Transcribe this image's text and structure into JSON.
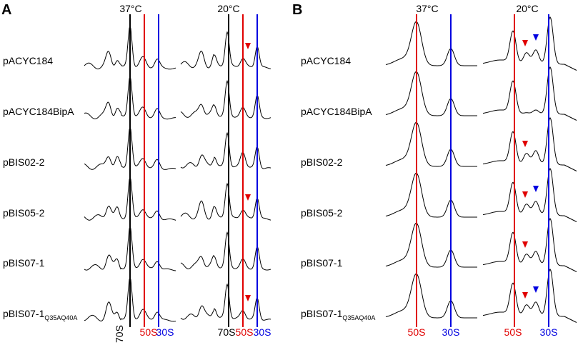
{
  "panels": [
    {
      "letter": "A",
      "temperatures": [
        "37°C",
        "20°C"
      ],
      "lanes": [
        {
          "label": "70S",
          "color": "#000000"
        },
        {
          "label": "50S",
          "color": "#e00000"
        },
        {
          "label": "30S",
          "color": "#0000e0"
        },
        {
          "label": "70S",
          "color": "#000000"
        },
        {
          "label": "50S",
          "color": "#e00000"
        },
        {
          "label": "30S",
          "color": "#0000e0"
        }
      ]
    },
    {
      "letter": "B",
      "temperatures": [
        "37°C",
        "20°C"
      ],
      "lanes": [
        {
          "label": "50S",
          "color": "#e00000"
        },
        {
          "label": "30S",
          "color": "#0000e0"
        },
        {
          "label": "50S",
          "color": "#e00000"
        },
        {
          "label": "30S",
          "color": "#0000e0"
        }
      ]
    }
  ],
  "samples": [
    {
      "name": "pACYC184",
      "sub": ""
    },
    {
      "name": "pACYC184BipA",
      "sub": ""
    },
    {
      "name": "pBIS02-2",
      "sub": ""
    },
    {
      "name": "pBIS05-2",
      "sub": ""
    },
    {
      "name": "pBIS07-1",
      "sub": ""
    },
    {
      "name": "pBIS07-1",
      "sub": "Q35AQ40A"
    }
  ],
  "colors": {
    "red": "#e00000",
    "blue": "#0000e0",
    "black": "#000000"
  },
  "chart_data": {
    "type": "line",
    "markers": {
      "A_20C_red_arrow_rows": [
        0,
        3,
        5
      ],
      "B_20C_red_arrow_rows": [
        0,
        2,
        3,
        4,
        5
      ],
      "B_20C_blue_arrow_rows": [
        0,
        3,
        5
      ]
    }
  }
}
